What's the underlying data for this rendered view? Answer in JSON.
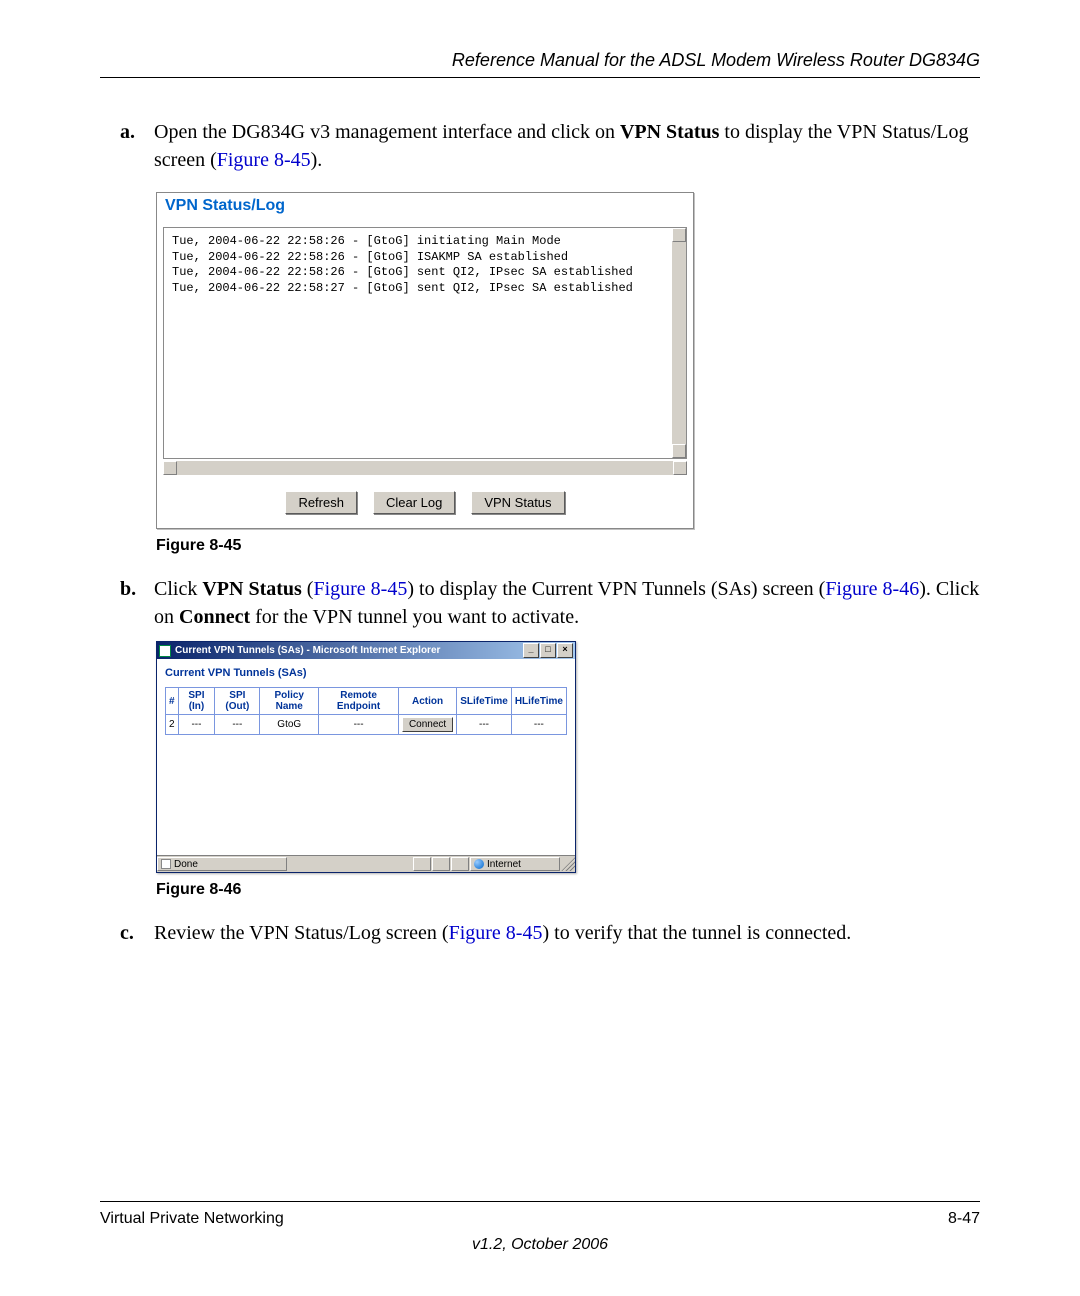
{
  "page": {
    "header_title": "Reference Manual for the ADSL Modem Wireless Router DG834G",
    "footer_left": "Virtual Private Networking",
    "footer_right": "8-47",
    "footer_version": "v1.2, October 2006"
  },
  "steps": {
    "a_letter": "a.",
    "a_text_prefix": "Open the DG834G v3 management interface and click on ",
    "a_bold": "VPN Status",
    "a_text_mid": " to display the VPN Status/Log screen (",
    "a_link": "Figure 8-45",
    "a_text_suffix": ").",
    "b_letter": "b.",
    "b_prefix": "Click ",
    "b_bold1": "VPN Status",
    "b_mid1": " (",
    "b_link1": "Figure 8-45",
    "b_mid2": ") to display the Current VPN Tunnels (SAs) screen (",
    "b_link2": "Figure 8-46",
    "b_mid3": "). Click on ",
    "b_bold2": "Connect",
    "b_suffix": " for the VPN tunnel you want to activate.",
    "c_letter": "c.",
    "c_prefix": "Review the VPN Status/Log screen (",
    "c_link": "Figure 8-45",
    "c_suffix": ") to verify that the tunnel is connected."
  },
  "fig45": {
    "caption": "Figure 8-45",
    "panel_title": "VPN Status/Log",
    "title_color": "#0066cc",
    "log_lines": [
      "Tue, 2004-06-22 22:58:26 - [GtoG] initiating Main Mode",
      "Tue, 2004-06-22 22:58:26 - [GtoG] ISAKMP SA established",
      "Tue, 2004-06-22 22:58:26 - [GtoG] sent QI2, IPsec SA established",
      "Tue, 2004-06-22 22:58:27 - [GtoG] sent QI2, IPsec SA established"
    ],
    "buttons": {
      "refresh": "Refresh",
      "clear": "Clear Log",
      "vpnstatus": "VPN Status"
    }
  },
  "fig46": {
    "caption": "Figure 8-46",
    "window_title": "Current VPN Tunnels (SAs) - Microsoft Internet Explorer",
    "heading": "Current VPN Tunnels (SAs)",
    "columns": [
      "#",
      "SPI (In)",
      "SPI (Out)",
      "Policy Name",
      "Remote Endpoint",
      "Action",
      "SLifeTime",
      "HLifeTime"
    ],
    "row": {
      "num": "2",
      "spi_in": "---",
      "spi_out": "---",
      "policy": "GtoG",
      "remote": "---",
      "action_label": "Connect",
      "slife": "---",
      "hlife": "---"
    },
    "status": {
      "done": "Done",
      "zone": "Internet"
    },
    "header_color": "#003399",
    "table_border_color": "#7a96df"
  }
}
